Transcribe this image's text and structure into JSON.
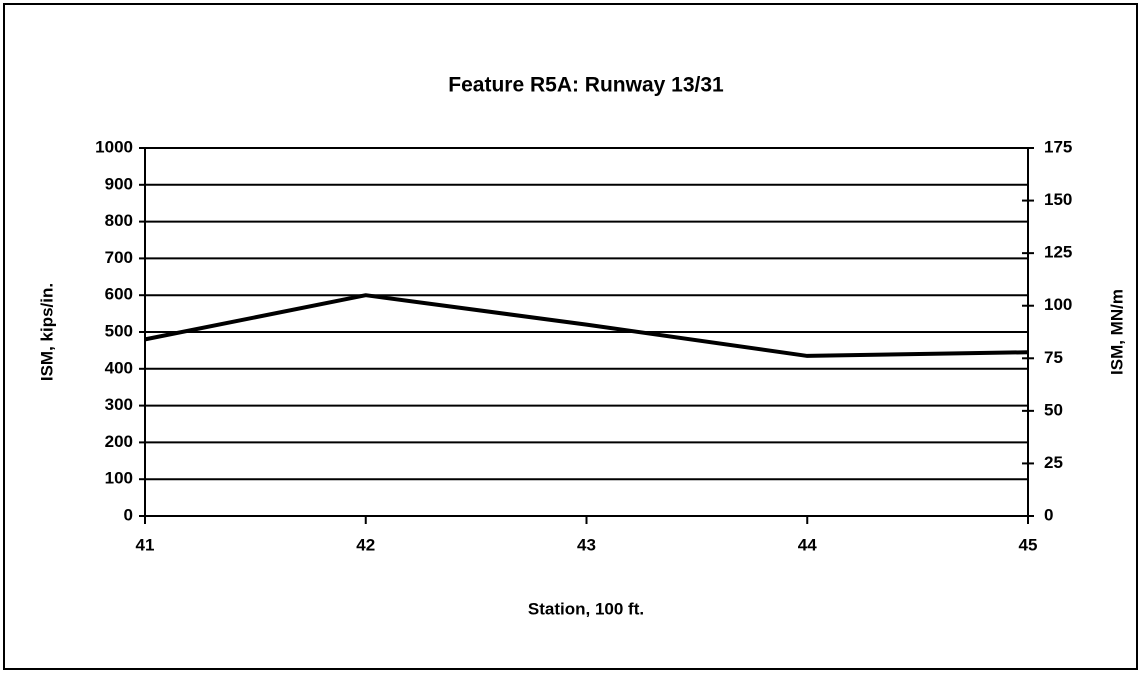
{
  "chart_data": {
    "type": "line",
    "title": "Feature R5A:  Runway 13/31",
    "x_label": "Station, 100 ft.",
    "y_label": "ISM, kips/in.",
    "y2_label": "ISM, MN/m",
    "x": [
      41,
      42,
      43,
      44,
      45
    ],
    "series": [
      {
        "name": "ISM",
        "color": "#000000",
        "values": [
          480,
          600,
          520,
          435,
          445
        ]
      }
    ],
    "xlim": [
      41,
      45
    ],
    "xticks": [
      41,
      42,
      43,
      44,
      45
    ],
    "ylim": [
      0,
      1000
    ],
    "yticks": [
      0,
      100,
      200,
      300,
      400,
      500,
      600,
      700,
      800,
      900,
      1000
    ],
    "y2lim": [
      0,
      175
    ],
    "y2ticks": [
      0,
      25,
      50,
      75,
      100,
      125,
      150,
      175
    ],
    "grid": true
  }
}
